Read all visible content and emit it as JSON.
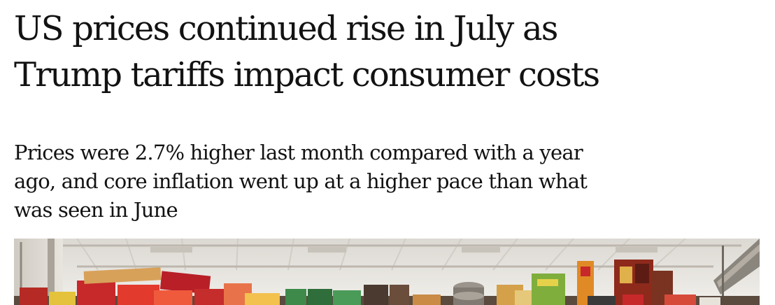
{
  "article": {
    "headline_line1": "US prices continued rise in July as",
    "headline_line2": "Trump tariffs impact consumer costs",
    "standfirst_line1": "Prices were 2.7% higher last month compared with a year",
    "standfirst_line2": "ago, and core inflation went up at a higher pace than what",
    "standfirst_line3": "was seen in June",
    "hero_image_subject": "supermarket aisle with grocery shelves"
  },
  "colors": {
    "text": "#121212",
    "background": "#ffffff",
    "ceiling": "#e9e6e1",
    "packaging_red": "#c7282a"
  }
}
